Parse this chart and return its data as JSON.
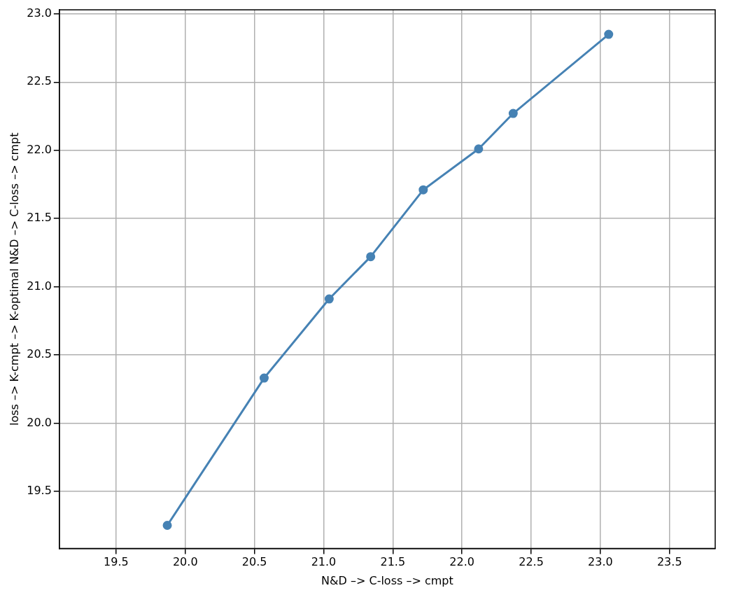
{
  "chart_data": {
    "type": "line",
    "xlabel": "N&D –> C-loss –> cmpt",
    "ylabel": "loss –> K-cmpt –> K-optimal N&D –> C-loss –> cmpt",
    "x": [
      19.87,
      20.57,
      21.04,
      21.34,
      21.72,
      22.12,
      22.37,
      23.06
    ],
    "series": [
      {
        "color": "#4682b4",
        "values": [
          19.25,
          20.33,
          20.91,
          21.22,
          21.71,
          22.01,
          22.27,
          22.85
        ]
      }
    ],
    "xlim": [
      19.09,
      23.83
    ],
    "xticks": [
      19.5,
      {
        "value": 20,
        "label": "20.0"
      },
      20.5,
      {
        "value": 21,
        "label": "21.0"
      },
      21.5,
      {
        "value": 22,
        "label": "22.0"
      },
      22.5,
      {
        "value": 23,
        "label": "23.0"
      },
      23.5
    ],
    "ylim": [
      19.08,
      23.03
    ],
    "yticks": [
      19.5,
      {
        "value": 20,
        "label": "20.0"
      },
      20.5,
      {
        "value": 21,
        "label": "21.0"
      },
      21.5,
      {
        "value": 22,
        "label": "22.0"
      },
      22.5,
      {
        "value": 23,
        "label": "23.0"
      }
    ],
    "grid": true,
    "marker": "circle",
    "line_style": "solid"
  }
}
